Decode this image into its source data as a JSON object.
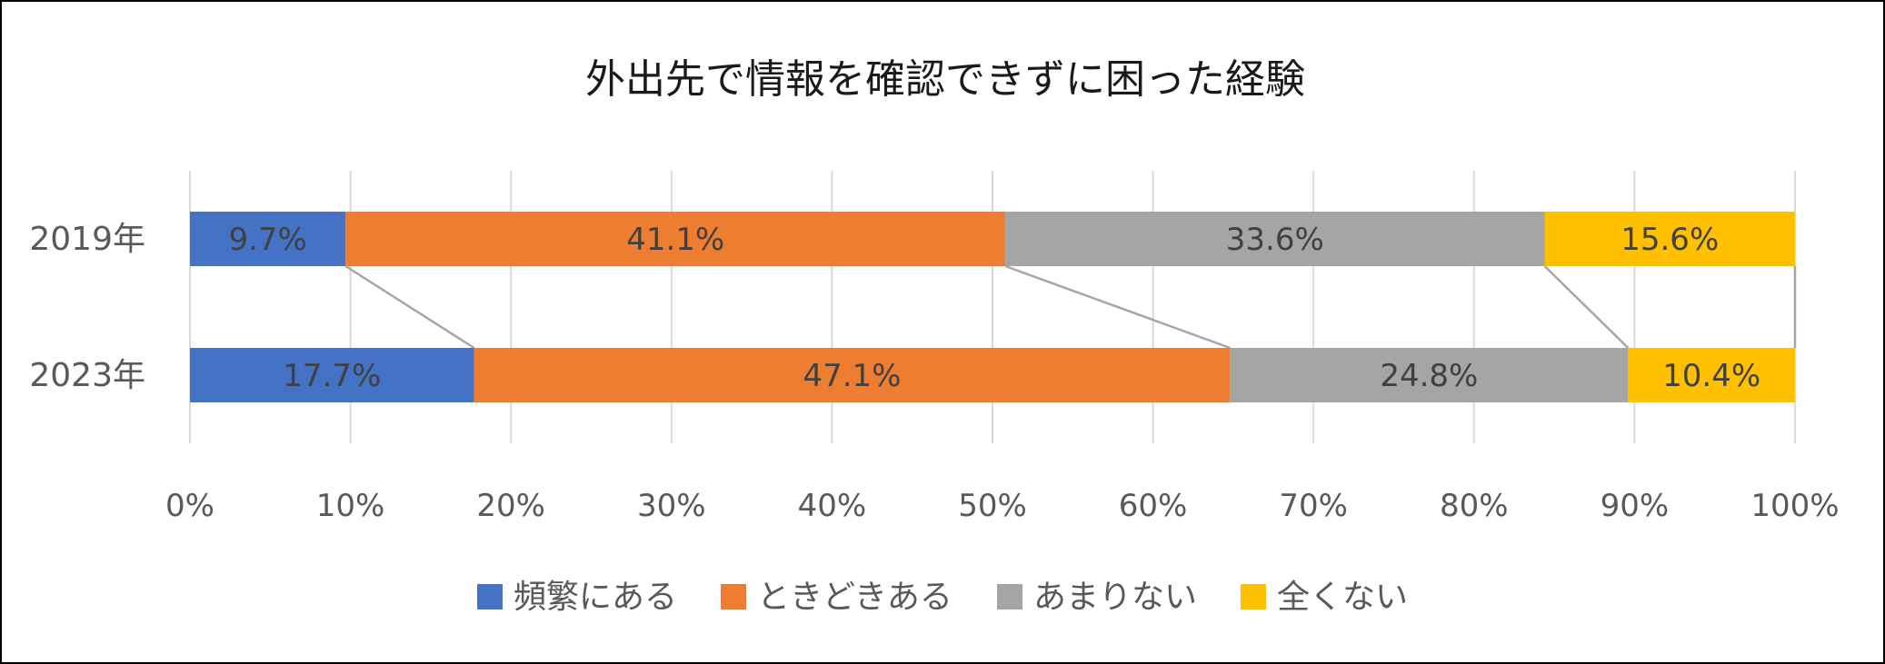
{
  "chart_data": {
    "type": "bar",
    "orientation": "horizontal",
    "stacked": "percent",
    "title": "外出先で情報を確認できずに困った経験",
    "categories": [
      "2019年",
      "2023年"
    ],
    "series": [
      {
        "name": "頻繁にある",
        "values": [
          9.7,
          17.7
        ],
        "color": "#4472C4"
      },
      {
        "name": "ときどきある",
        "values": [
          41.1,
          47.1
        ],
        "color": "#ED7D31"
      },
      {
        "name": "あまりない",
        "values": [
          33.6,
          24.8
        ],
        "color": "#A5A5A5"
      },
      {
        "name": "全くない",
        "values": [
          15.6,
          10.4
        ],
        "color": "#FFC000"
      }
    ],
    "data_labels": [
      [
        "9.7%",
        "41.1%",
        "33.6%",
        "15.6%"
      ],
      [
        "17.7%",
        "47.1%",
        "24.8%",
        "10.4%"
      ]
    ],
    "xlim": [
      0,
      100
    ],
    "x_ticks": [
      "0%",
      "10%",
      "20%",
      "30%",
      "40%",
      "50%",
      "60%",
      "70%",
      "80%",
      "90%",
      "100%"
    ],
    "grid": true,
    "series_lines": true,
    "legend": "bottom"
  }
}
